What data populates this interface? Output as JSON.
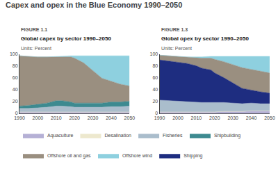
{
  "title": "Capex and opex in the Blue Economy 1990–2050",
  "chart_data": [
    {
      "type": "area",
      "stacked": true,
      "grid": false,
      "annotations": [
        "FIGURE 1.1"
      ],
      "title": "Global capex by sector 1990–2050",
      "subtitle": "Units: Percent",
      "x": [
        1990,
        1995,
        2000,
        2005,
        2010,
        2013,
        2018,
        2020,
        2025,
        2030,
        2035,
        2040,
        2045,
        2050
      ],
      "xlim": [
        1990,
        2050
      ],
      "xticks": [
        1990,
        2000,
        2010,
        2020,
        2030,
        2040,
        2050
      ],
      "ylim": [
        0,
        100
      ],
      "yticks": [
        0,
        20,
        40,
        60,
        80,
        100
      ],
      "series": [
        {
          "name": "Aquaculture",
          "color": "#b5b0d5",
          "values": [
            2,
            2,
            2,
            2,
            2,
            2,
            2,
            2,
            2,
            2,
            2,
            2,
            2,
            2
          ]
        },
        {
          "name": "Desalination",
          "color": "#ede8ce",
          "values": [
            0.5,
            0.5,
            0.5,
            0.5,
            0.5,
            0.5,
            0.5,
            0.5,
            0.5,
            0.5,
            0.5,
            0.5,
            0.5,
            0.5
          ]
        },
        {
          "name": "Fisheries",
          "color": "#aabdcc",
          "values": [
            6,
            6,
            7,
            8,
            10,
            10,
            9,
            8,
            8,
            8,
            8,
            9,
            9,
            10
          ]
        },
        {
          "name": "Shipbuilding",
          "color": "#3d8a90",
          "values": [
            4,
            5,
            6,
            7,
            9,
            9,
            8,
            7,
            7,
            7,
            7,
            8,
            8,
            8
          ]
        },
        {
          "name": "Offshore oil and gas",
          "color": "#9a8f80",
          "values": [
            85,
            83,
            80,
            78,
            74,
            74,
            76,
            76,
            68,
            55,
            42,
            35,
            30,
            26
          ]
        },
        {
          "name": "Offshore wind",
          "color": "#8ed0df",
          "values": [
            0,
            0,
            0,
            0,
            1,
            1,
            2,
            4,
            12,
            25,
            38,
            43,
            48,
            51
          ]
        }
      ]
    },
    {
      "type": "area",
      "stacked": true,
      "grid": false,
      "annotations": [
        "FIGURE 1.3"
      ],
      "title": "Global opex by sector 1990–2050",
      "subtitle": "Units: Percent",
      "x": [
        1990,
        1995,
        2000,
        2005,
        2010,
        2013,
        2018,
        2020,
        2025,
        2030,
        2035,
        2040,
        2045,
        2050
      ],
      "xlim": [
        1990,
        2050
      ],
      "xticks": [
        1990,
        2000,
        2010,
        2020,
        2030,
        2040,
        2050
      ],
      "ylim": [
        0,
        100
      ],
      "yticks": [
        0,
        20,
        40,
        60,
        80,
        100
      ],
      "series": [
        {
          "name": "Aquaculture",
          "color": "#b5b0d5",
          "values": [
            2,
            2,
            2,
            2,
            2,
            2,
            2,
            2,
            3,
            3,
            3,
            4,
            4,
            4
          ]
        },
        {
          "name": "Desalination",
          "color": "#ede8ce",
          "values": [
            0.5,
            0.5,
            0.5,
            0.5,
            0.5,
            0.5,
            0.5,
            0.5,
            0.5,
            0.5,
            0.5,
            0.5,
            0.5,
            0.5
          ]
        },
        {
          "name": "Fisheries",
          "color": "#aabdcc",
          "values": [
            20,
            19,
            18,
            17,
            16,
            16,
            16,
            16,
            15,
            14,
            13,
            13,
            12,
            12
          ]
        },
        {
          "name": "Shipping",
          "color": "#1e2d80",
          "values": [
            68,
            67,
            66,
            65,
            62,
            58,
            55,
            50,
            42,
            34,
            26,
            22,
            20,
            18
          ]
        },
        {
          "name": "Offshore oil and gas",
          "color": "#9a8f80",
          "values": [
            8,
            9,
            10,
            11,
            14,
            17,
            20,
            23,
            27,
            31,
            35,
            35,
            35,
            34
          ]
        },
        {
          "name": "Offshore wind",
          "color": "#8ed0df",
          "values": [
            0,
            0,
            0,
            0,
            1,
            2,
            3,
            5,
            9,
            14,
            19,
            22,
            25,
            28
          ]
        }
      ]
    }
  ]
}
